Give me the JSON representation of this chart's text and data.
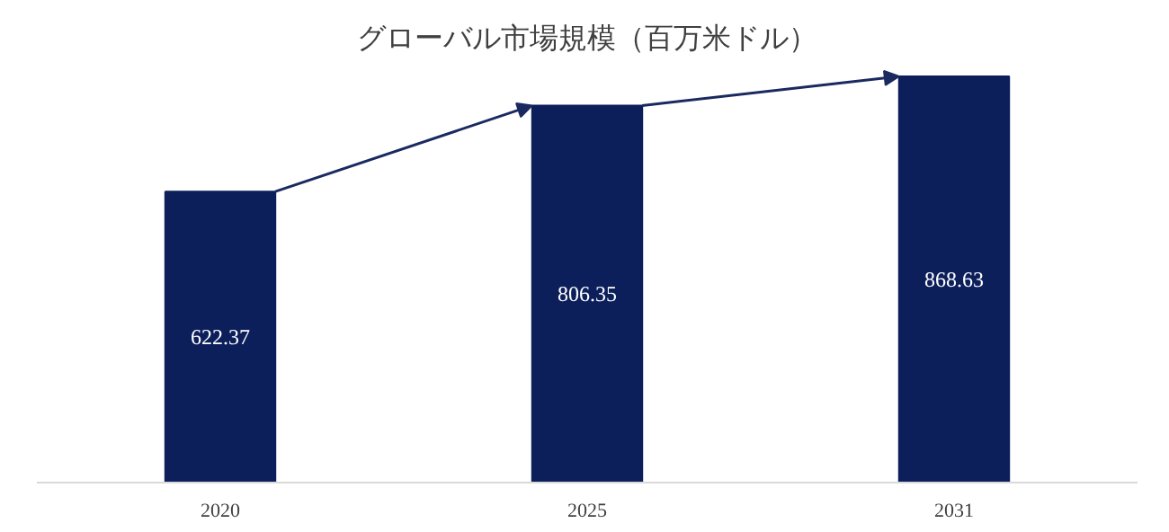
{
  "chart_data": {
    "type": "bar",
    "title": "グローバル市場規模（百万米ドル）",
    "categories": [
      "2020",
      "2025",
      "2031"
    ],
    "values": [
      622.37,
      806.35,
      868.63
    ],
    "color": "#0c1f5b",
    "data_labels": true,
    "grid": false
  }
}
